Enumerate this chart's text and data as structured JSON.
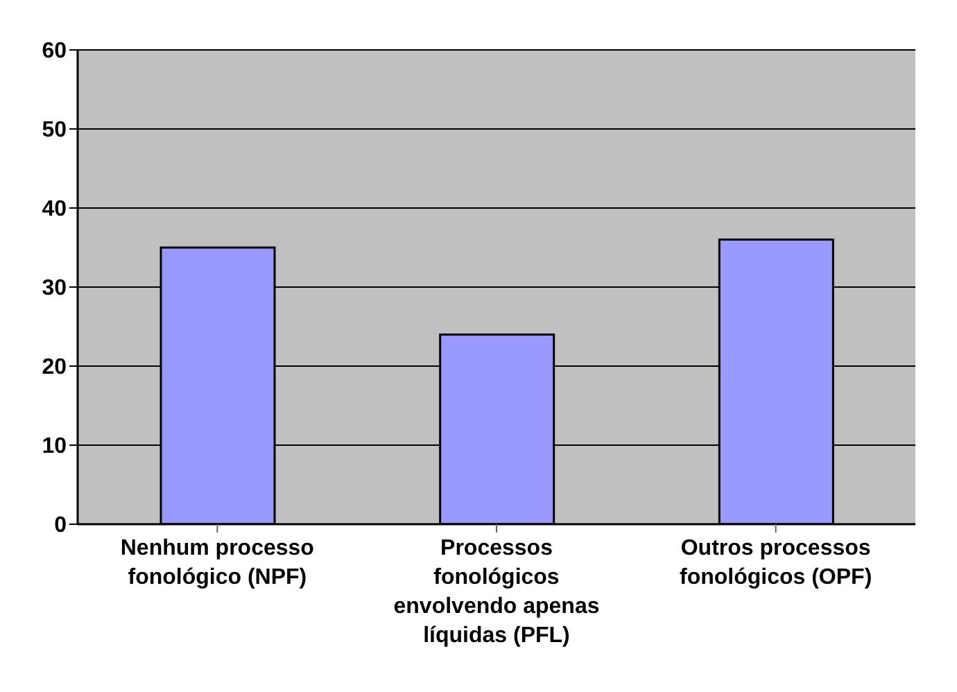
{
  "chart_data": {
    "type": "bar",
    "categories": [
      "Nenhum processo fonológico (NPF)",
      "Processos fonológicos envolvendo apenas líquidas (PFL)",
      "Outros processos fonológicos (OPF)"
    ],
    "values": [
      35,
      24,
      36
    ],
    "color": "#9999ff",
    "ylim": [
      0,
      60
    ],
    "yticks": [
      0,
      10,
      20,
      30,
      40,
      50,
      60
    ],
    "grid": "y",
    "legend": false
  }
}
